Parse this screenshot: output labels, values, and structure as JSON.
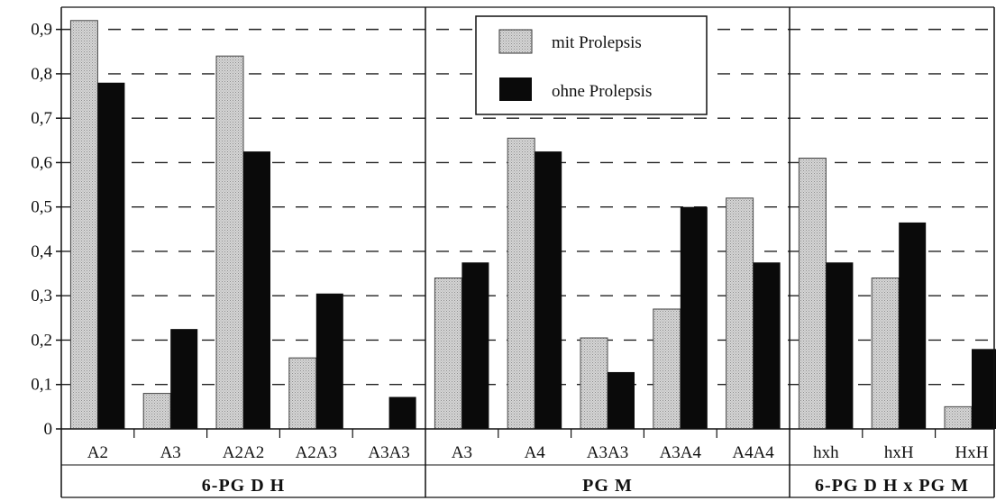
{
  "chart_data": {
    "type": "bar",
    "ylim": [
      0,
      0.95
    ],
    "yticks": [
      "0",
      "0,1",
      "0,2",
      "0,3",
      "0,4",
      "0,5",
      "0,6",
      "0,7",
      "0,8",
      "0,9"
    ],
    "grid": "dashed horizontal",
    "legend_position": "top-center",
    "legend": [
      "mit Prolepsis",
      "ohne Prolepsis"
    ],
    "colors": {
      "mit": "#c8c8c8",
      "ohne": "#0a0a0a"
    },
    "groups": [
      {
        "label": "6-PG D H",
        "categories": [
          "A2",
          "A3",
          "A2A2",
          "A2A3",
          "A3A3"
        ],
        "mit": [
          0.92,
          0.08,
          0.84,
          0.16,
          0.0
        ],
        "ohne": [
          0.78,
          0.225,
          0.625,
          0.305,
          0.072
        ]
      },
      {
        "label": "PG M",
        "categories": [
          "A3",
          "A4",
          "A3A3",
          "A3A4",
          "A4A4"
        ],
        "mit": [
          0.34,
          0.655,
          0.205,
          0.27,
          0.52
        ],
        "ohne": [
          0.375,
          0.625,
          0.128,
          0.5,
          0.375
        ]
      },
      {
        "label": "6-PG D H  x  PG M",
        "categories": [
          "hxh",
          "hxH",
          "HxH"
        ],
        "mit": [
          0.61,
          0.34,
          0.05
        ],
        "ohne": [
          0.375,
          0.465,
          0.18
        ]
      }
    ]
  }
}
